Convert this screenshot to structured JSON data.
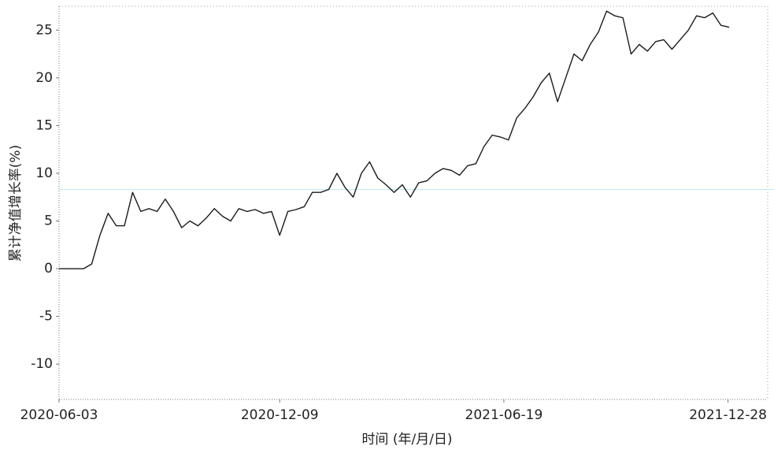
{
  "chart_data": {
    "type": "line",
    "ylabel": "累计净值增长率(%)",
    "xlabel": "时间 (年/月/日)",
    "x": [
      "2020-06-03",
      "2020-06-10",
      "2020-06-17",
      "2020-06-24",
      "2020-07-01",
      "2020-07-08",
      "2020-07-15",
      "2020-07-22",
      "2020-07-29",
      "2020-08-05",
      "2020-08-12",
      "2020-08-19",
      "2020-08-26",
      "2020-09-02",
      "2020-09-09",
      "2020-09-16",
      "2020-09-23",
      "2020-09-30",
      "2020-10-07",
      "2020-10-14",
      "2020-10-21",
      "2020-10-28",
      "2020-11-04",
      "2020-11-11",
      "2020-11-18",
      "2020-11-25",
      "2020-12-02",
      "2020-12-09",
      "2020-12-16",
      "2020-12-23",
      "2020-12-30",
      "2021-01-06",
      "2021-01-13",
      "2021-01-20",
      "2021-01-27",
      "2021-02-03",
      "2021-02-10",
      "2021-02-17",
      "2021-02-24",
      "2021-03-03",
      "2021-03-10",
      "2021-03-17",
      "2021-03-24",
      "2021-03-31",
      "2021-04-07",
      "2021-04-14",
      "2021-04-21",
      "2021-04-28",
      "2021-05-05",
      "2021-05-12",
      "2021-05-19",
      "2021-05-26",
      "2021-06-02",
      "2021-06-09",
      "2021-06-16",
      "2021-06-23",
      "2021-06-30",
      "2021-07-07",
      "2021-07-14",
      "2021-07-21",
      "2021-07-28",
      "2021-08-04",
      "2021-08-11",
      "2021-08-18",
      "2021-08-25",
      "2021-09-01",
      "2021-09-08",
      "2021-09-15",
      "2021-09-22",
      "2021-09-29",
      "2021-10-06",
      "2021-10-13",
      "2021-10-20",
      "2021-10-27",
      "2021-11-03",
      "2021-11-10",
      "2021-11-17",
      "2021-11-24",
      "2021-12-01",
      "2021-12-08",
      "2021-12-15",
      "2021-12-22",
      "2021-12-29"
    ],
    "series": [
      {
        "color": "#1a1a1a",
        "values": [
          0,
          0,
          0,
          0,
          0.5,
          3.5,
          5.8,
          4.5,
          4.5,
          8,
          6,
          6.3,
          6,
          7.3,
          6,
          4.3,
          5,
          4.5,
          5.3,
          6.3,
          5.5,
          5,
          6.3,
          6,
          6.2,
          5.8,
          6,
          3.5,
          6,
          6.2,
          6.5,
          8,
          8,
          8.3,
          10,
          8.5,
          7.5,
          10,
          11.2,
          9.5,
          8.8,
          8,
          8.8,
          7.5,
          9,
          9.2,
          10,
          10.5,
          10.3,
          9.8,
          10.8,
          11,
          12.8,
          14,
          13.8,
          13.5,
          15.8,
          16.8,
          18,
          19.5,
          20.5,
          17.5,
          20,
          22.5,
          21.8,
          23.5,
          24.8,
          27,
          26.5,
          26.3,
          22.5,
          23.5,
          22.8,
          23.8,
          24,
          23,
          24,
          25,
          26.5,
          26.3,
          26.8,
          25.5,
          25.3
        ]
      }
    ],
    "xlim": [
      "2020-06-03",
      "2022-01-31"
    ],
    "xticks": [
      "2020-06-03",
      "2020-12-09",
      "2021-06-19",
      "2021-12-28"
    ],
    "ylim": [
      -13.7,
      27.5
    ],
    "yticks": [
      -10,
      -5,
      0,
      5,
      10,
      15,
      20,
      25
    ],
    "reference_line": {
      "value": 8.3,
      "color": "#bfe9f2"
    }
  }
}
